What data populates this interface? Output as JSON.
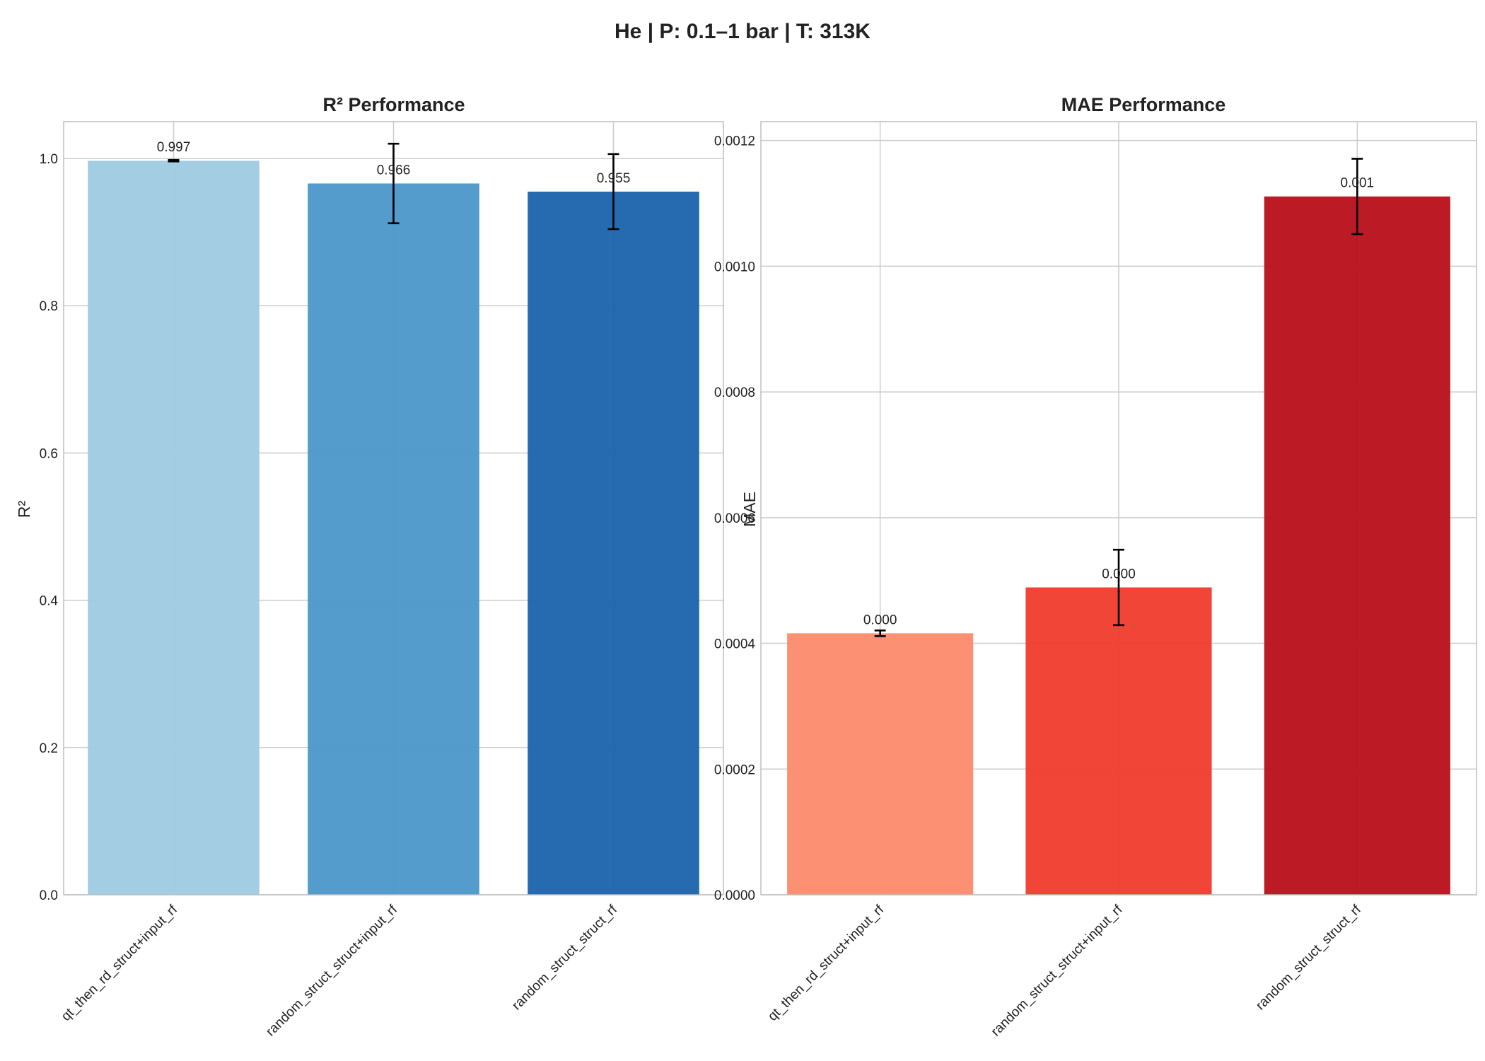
{
  "figure": {
    "title": "He | P: 0.1–1 bar | T: 313K"
  },
  "chart_data": [
    {
      "type": "bar",
      "title": "R² Performance",
      "xlabel": "",
      "ylabel": "R²",
      "categories": [
        "qt_then_rd_struct+input_rf",
        "random_struct_struct+input_rf",
        "random_struct_struct_rf"
      ],
      "values": [
        0.997,
        0.966,
        0.955
      ],
      "errors": [
        0.001,
        0.054,
        0.051
      ],
      "data_labels": [
        "0.997",
        "0.966",
        "0.955"
      ],
      "colors": [
        "#9ecae1",
        "#4a97c9",
        "#1a62ab"
      ],
      "ylim": [
        0,
        1.05
      ],
      "yticks": [
        0.0,
        0.2,
        0.4,
        0.6,
        0.8,
        1.0
      ],
      "ytick_labels": [
        "0.0",
        "0.2",
        "0.4",
        "0.6",
        "0.8",
        "1.0"
      ],
      "grid": true
    },
    {
      "type": "bar",
      "title": "MAE Performance",
      "xlabel": "",
      "ylabel": "MAE",
      "categories": [
        "qt_then_rd_struct+input_rf",
        "random_struct_struct+input_rf",
        "random_struct_struct_rf"
      ],
      "values": [
        0.000416,
        0.000489,
        0.001111
      ],
      "errors": [
        4.5e-06,
        6e-05,
        6e-05
      ],
      "data_labels": [
        "0.000",
        "0.000",
        "0.001"
      ],
      "colors": [
        "#fc8a6b",
        "#ef3b2c",
        "#b80f1a"
      ],
      "ylim": [
        0,
        0.00123
      ],
      "yticks": [
        0.0,
        0.0002,
        0.0004,
        0.0006,
        0.0008,
        0.001,
        0.0012
      ],
      "ytick_labels": [
        "0.0000",
        "0.0002",
        "0.0004",
        "0.0006",
        "0.0008",
        "0.0010",
        "0.0012"
      ],
      "grid": true
    }
  ]
}
